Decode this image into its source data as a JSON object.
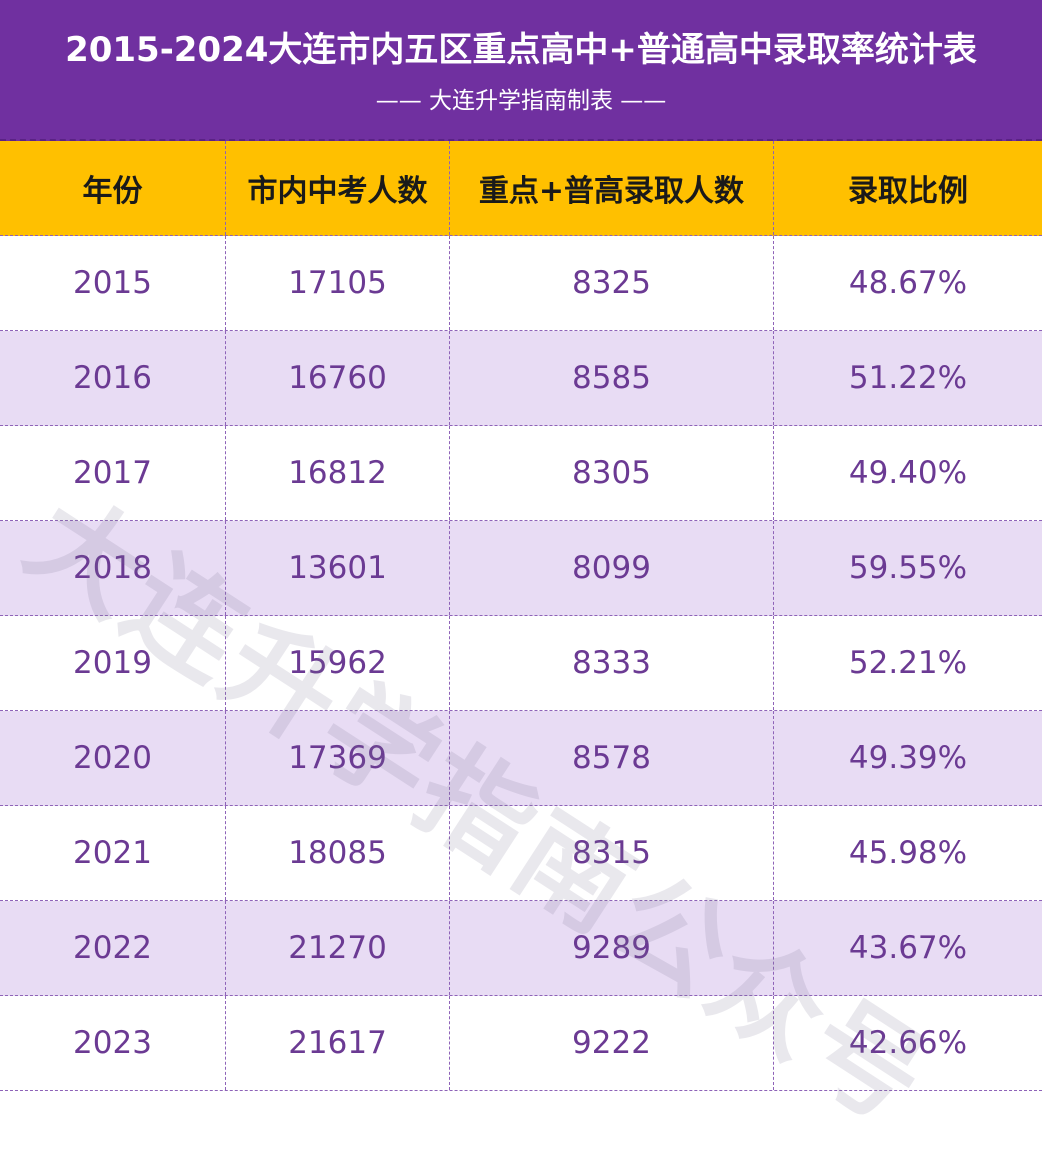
{
  "header": {
    "title": "2015-2024大连市内五区重点高中+普通高中录取率统计表",
    "subtitle": "—— 大连升学指南制表 ——"
  },
  "table": {
    "headers": [
      "年份",
      "市内中考人数",
      "重点+普高录取人数",
      "录取比例"
    ],
    "rows": [
      [
        "2015",
        "17105",
        "8325",
        "48.67%"
      ],
      [
        "2016",
        "16760",
        "8585",
        "51.22%"
      ],
      [
        "2017",
        "16812",
        "8305",
        "49.40%"
      ],
      [
        "2018",
        "13601",
        "8099",
        "59.55%"
      ],
      [
        "2019",
        "15962",
        "8333",
        "52.21%"
      ],
      [
        "2020",
        "17369",
        "8578",
        "49.39%"
      ],
      [
        "2021",
        "18085",
        "8315",
        "45.98%"
      ],
      [
        "2022",
        "21270",
        "9289",
        "43.67%"
      ],
      [
        "2023",
        "21617",
        "9222",
        "42.66%"
      ]
    ]
  },
  "watermark": "大连升学指南公众号",
  "colors": {
    "header_bg": "#7030a0",
    "table_header_bg": "#ffc000",
    "stripe_bg": "#e8dcf4",
    "text_purple": "#6b3a93"
  }
}
